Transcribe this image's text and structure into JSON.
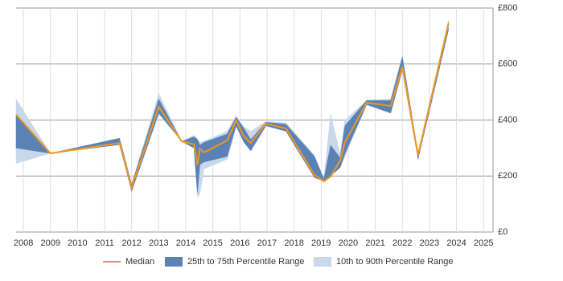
{
  "chart_data": {
    "type": "line",
    "x": [
      2007.73,
      2009,
      2011.55,
      2012.0,
      2013,
      2013.85,
      2014.3,
      2014.43,
      2014.52,
      2014.67,
      2015.53,
      2015.86,
      2016.15,
      2016.4,
      2016.96,
      2017.7,
      2018.75,
      2019.1,
      2019.35,
      2019.7,
      2019.88,
      2020.68,
      2021.57,
      2022.0,
      2022.58,
      2023.7
    ],
    "series": [
      {
        "name": "Median",
        "color": "#f0961e",
        "values": [
          420,
          281,
          318,
          158,
          447,
          324,
          313,
          241,
          298,
          284,
          327,
          399,
          341,
          318,
          387,
          370,
          204,
          181,
          198,
          255,
          321,
          462,
          450,
          591,
          275,
          743
        ]
      }
    ],
    "ranges": [
      {
        "name": "25th to 75th Percentile Range",
        "color": "#5b82b4",
        "low": [
          300,
          281,
          312,
          145,
          425,
          324,
          300,
          140,
          240,
          250,
          270,
          380,
          320,
          290,
          380,
          360,
          195,
          181,
          200,
          230,
          280,
          455,
          425,
          580,
          260,
          720
        ],
        "high": [
          415,
          281,
          335,
          170,
          475,
          324,
          340,
          330,
          310,
          320,
          350,
          410,
          370,
          330,
          392,
          385,
          270,
          190,
          310,
          265,
          380,
          470,
          470,
          625,
          280,
          750
        ]
      },
      {
        "name": "10th to 90th Percentile Range",
        "color": "#c8d8ea",
        "low": [
          245,
          281,
          312,
          145,
          420,
          324,
          300,
          125,
          135,
          225,
          260,
          375,
          320,
          290,
          378,
          360,
          195,
          181,
          200,
          230,
          270,
          455,
          425,
          575,
          260,
          720
        ],
        "high": [
          475,
          281,
          335,
          170,
          495,
          324,
          345,
          335,
          320,
          325,
          360,
          415,
          375,
          360,
          395,
          390,
          275,
          190,
          420,
          280,
          400,
          470,
          475,
          630,
          280,
          755
        ]
      }
    ],
    "xlim": [
      2007.73,
      2025.35
    ],
    "xticks": [
      2008,
      2009,
      2010,
      2011,
      2012,
      2013,
      2014,
      2015,
      2016,
      2017,
      2018,
      2019,
      2020,
      2021,
      2022,
      2023,
      2024,
      2025
    ],
    "ylim": [
      0,
      800
    ],
    "yticks": [
      {
        "value": 0,
        "label": "£0"
      },
      {
        "value": 200,
        "label": "£200"
      },
      {
        "value": 400,
        "label": "£400"
      },
      {
        "value": 600,
        "label": "£600"
      },
      {
        "value": 800,
        "label": "£800"
      }
    ],
    "grid": true
  }
}
